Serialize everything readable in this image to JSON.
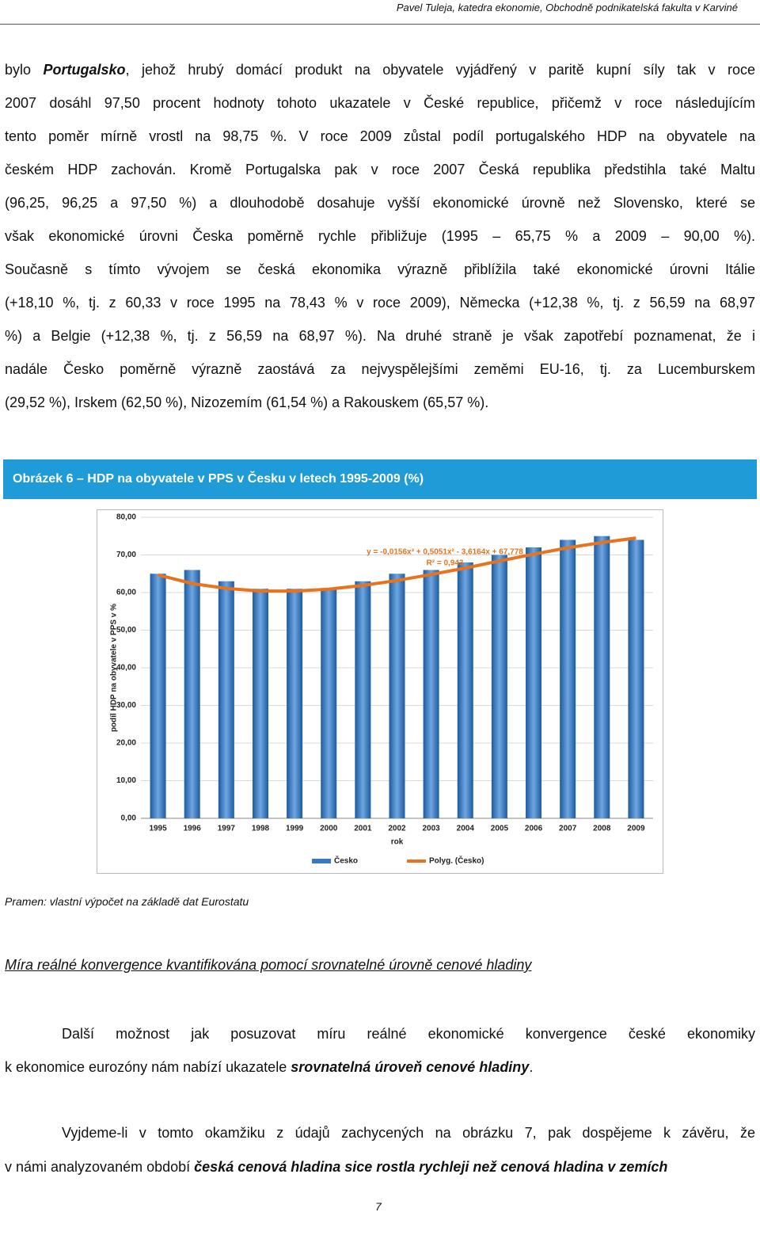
{
  "header": {
    "text": "Pavel Tuleja, katedra ekonomie, Obchodně podnikatelská fakulta v Karviné"
  },
  "paragraph1": {
    "lines": [
      [
        "bylo ",
        {
          "em": "Portugalsko"
        },
        ", jehož hrubý domácí produkt na obyvatele vyjádřený v paritě kupní síly tak v roce"
      ],
      [
        "2007 dosáhl 97,50 procent hodnoty tohoto ukazatele v České republice, přičemž v roce následujícím"
      ],
      [
        "tento poměr mírně vrostl na 98,75 %. V roce 2009 zůstal podíl portugalského HDP na obyvatele na"
      ],
      [
        "českém HDP zachován. Kromě Portugalska pak v roce 2007 Česká republika předstihla také Maltu"
      ],
      [
        "(96,25, 96,25 a 97,50 %) a dlouhodobě dosahuje vyšší ekonomické úrovně než Slovensko, které se"
      ],
      [
        "však ekonomické úrovni Česka poměrně rychle přibližuje (1995 – 65,75 % a 2009 – 90,00 %)."
      ],
      [
        "Současně s tímto vývojem se česká ekonomika výrazně přiblížila také ekonomické úrovni Itálie"
      ],
      [
        "(+18,10 %, tj. z 60,33 v roce 1995 na 78,43 % v roce 2009), Německa (+12,38 %, tj. z 56,59 na 68,97"
      ],
      [
        "%) a Belgie (+12,38 %, tj. z 56,59 na 68,97 %). Na druhé straně je však zapotřebí poznamenat, že i"
      ],
      [
        "nadále Česko poměrně výrazně zaostává za nejvyspělejšími zeměmi EU-16, tj. za Lucemburskem"
      ],
      [
        "(29,52 %), Irskem (62,50 %), Nizozemím (61,54 %) a Rakouskem (65,57 %)."
      ]
    ]
  },
  "figure": {
    "caption": "Obrázek 6 – HDP na obyvatele v PPS v Česku v letech 1995-2009 (%)",
    "source": "Pramen: vlastní výpočet na základě dat Eurostatu"
  },
  "chart_data": {
    "type": "bar",
    "x_label": "rok",
    "y_label": "podíl HDP na obyvatele v PPS v %",
    "equation": "y = -0,0156x³ + 0,5051x² - 3,6164x + 67,778",
    "r_squared": "R² = 0,943",
    "categories": [
      "1995",
      "1996",
      "1997",
      "1998",
      "1999",
      "2000",
      "2001",
      "2002",
      "2003",
      "2004",
      "2005",
      "2006",
      "2007",
      "2008",
      "2009"
    ],
    "series": [
      {
        "name": "Česko",
        "color": "#3a78c2",
        "values": [
          65,
          66,
          63,
          61,
          61,
          61,
          63,
          65,
          66,
          68,
          70,
          72,
          74,
          75,
          74
        ]
      },
      {
        "name": "Polyg. (Česko)",
        "color": "#e8731c",
        "line": true,
        "values": [
          64.7,
          62.4,
          61.1,
          60.4,
          60.4,
          60.9,
          61.9,
          63.2,
          64.8,
          66.5,
          68.4,
          70.2,
          71.9,
          73.3,
          74.5
        ]
      }
    ],
    "ylim": [
      0,
      80
    ],
    "yticks": [
      {
        "value": 0,
        "label": "0,00"
      },
      {
        "value": 10,
        "label": "10,00"
      },
      {
        "value": 20,
        "label": "20,00"
      },
      {
        "value": 30,
        "label": "30,00"
      },
      {
        "value": 40,
        "label": "40,00"
      },
      {
        "value": 50,
        "label": "50,00"
      },
      {
        "value": 60,
        "label": "60,00"
      },
      {
        "value": 70,
        "label": "70,00"
      },
      {
        "value": 80,
        "label": "80,00"
      }
    ],
    "grid": true
  },
  "section": {
    "heading": "Míra reálné konvergence kvantifikována pomocí srovnatelné úrovně cenové hladiny"
  },
  "paragraph2": {
    "lines": [
      [
        "Další možnost jak posuzovat míru reálné ekonomické konvergence české ekonomiky"
      ],
      [
        "k ekonomice eurozóny nám nabízí ukazatele ",
        {
          "em": "srovnatelná úroveň cenové hladiny"
        },
        "."
      ]
    ]
  },
  "paragraph3": {
    "lines": [
      [
        "Vyjdeme-li v tomto okamžiku z údajů zachycených na obrázku 7, pak dospějeme k závěru, že"
      ],
      [
        "v námi analyzovaném období ",
        {
          "em": "česká cenová hladina sice rostla rychleji než cenová hladina v zemích"
        }
      ]
    ]
  },
  "footer": {
    "page": "7"
  }
}
